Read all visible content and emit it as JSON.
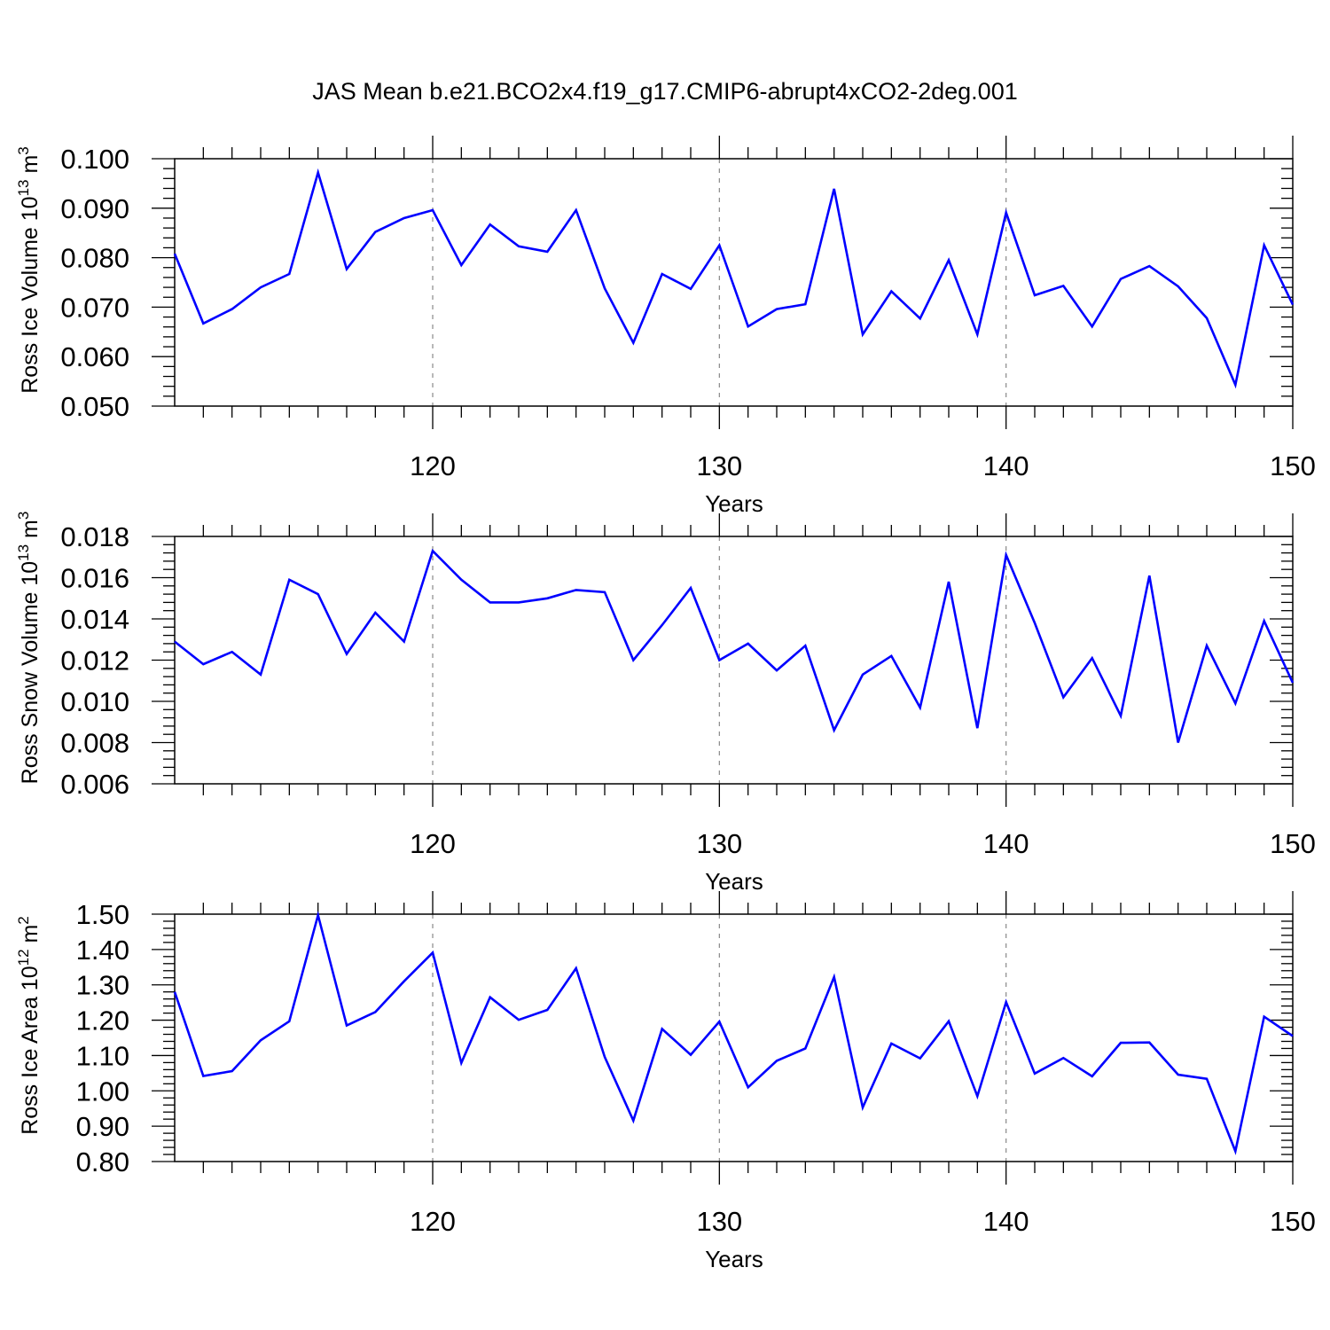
{
  "title": "JAS Mean b.e21.BCO2x4.f19_g17.CMIP6-abrupt4xCO2-2deg.001",
  "line_color": "#0000ff",
  "chart_data": [
    {
      "type": "line",
      "xlabel": "Years",
      "ylabel": {
        "main": "Ross Ice Volume 10",
        "exp": "13",
        "unit": " m",
        "unit_exp": "3"
      },
      "xlim": [
        111,
        150
      ],
      "ylim": [
        0.05,
        0.1
      ],
      "x_ticks": [
        120,
        130,
        140,
        150
      ],
      "y_ticks": [
        "0.050",
        "0.060",
        "0.070",
        "0.080",
        "0.090",
        "0.100"
      ],
      "x": [
        111,
        112,
        113,
        114,
        115,
        116,
        117,
        118,
        119,
        120,
        121,
        122,
        123,
        124,
        125,
        126,
        127,
        128,
        129,
        130,
        131,
        132,
        133,
        134,
        135,
        136,
        137,
        138,
        139,
        140,
        141,
        142,
        143,
        144,
        145,
        146,
        147,
        148,
        149,
        150
      ],
      "values": [
        0.0808,
        0.0667,
        0.0696,
        0.074,
        0.0767,
        0.0972,
        0.0777,
        0.0852,
        0.088,
        0.0896,
        0.0785,
        0.0867,
        0.0823,
        0.0812,
        0.0896,
        0.0738,
        0.0628,
        0.0767,
        0.0737,
        0.0825,
        0.0661,
        0.0696,
        0.0706,
        0.0939,
        0.0645,
        0.0732,
        0.0677,
        0.0795,
        0.0645,
        0.0891,
        0.0724,
        0.0743,
        0.0661,
        0.0757,
        0.0783,
        0.0742,
        0.0678,
        0.0543,
        0.0825,
        0.0705
      ]
    },
    {
      "type": "line",
      "xlabel": "Years",
      "ylabel": {
        "main": "Ross Snow Volume 10",
        "exp": "13",
        "unit": " m",
        "unit_exp": "3"
      },
      "xlim": [
        111,
        150
      ],
      "ylim": [
        0.006,
        0.018
      ],
      "x_ticks": [
        120,
        130,
        140,
        150
      ],
      "y_ticks": [
        "0.006",
        "0.008",
        "0.010",
        "0.012",
        "0.014",
        "0.016",
        "0.018"
      ],
      "x": [
        111,
        112,
        113,
        114,
        115,
        116,
        117,
        118,
        119,
        120,
        121,
        122,
        123,
        124,
        125,
        126,
        127,
        128,
        129,
        130,
        131,
        132,
        133,
        134,
        135,
        136,
        137,
        138,
        139,
        140,
        141,
        142,
        143,
        144,
        145,
        146,
        147,
        148,
        149,
        150
      ],
      "values": [
        0.0129,
        0.0118,
        0.0124,
        0.0113,
        0.0159,
        0.0152,
        0.0123,
        0.0143,
        0.0129,
        0.0173,
        0.0159,
        0.0148,
        0.0148,
        0.015,
        0.0154,
        0.0153,
        0.012,
        0.0137,
        0.0155,
        0.012,
        0.0128,
        0.0115,
        0.0127,
        0.0086,
        0.0113,
        0.0122,
        0.0097,
        0.0158,
        0.0087,
        0.0171,
        0.0138,
        0.0102,
        0.0121,
        0.0093,
        0.0161,
        0.008,
        0.0127,
        0.0099,
        0.0139,
        0.0109
      ]
    },
    {
      "type": "line",
      "xlabel": "Years",
      "ylabel": {
        "main": "Ross Ice Area 10",
        "exp": "12",
        "unit": " m",
        "unit_exp": "2"
      },
      "xlim": [
        111,
        150
      ],
      "ylim": [
        0.8,
        1.5
      ],
      "x_ticks": [
        120,
        130,
        140,
        150
      ],
      "y_ticks": [
        "0.80",
        "0.90",
        "1.00",
        "1.10",
        "1.20",
        "1.30",
        "1.40",
        "1.50"
      ],
      "x": [
        111,
        112,
        113,
        114,
        115,
        116,
        117,
        118,
        119,
        120,
        121,
        122,
        123,
        124,
        125,
        126,
        127,
        128,
        129,
        130,
        131,
        132,
        133,
        134,
        135,
        136,
        137,
        138,
        139,
        140,
        141,
        142,
        143,
        144,
        145,
        146,
        147,
        148,
        149,
        150
      ],
      "values": [
        1.28,
        1.042,
        1.056,
        1.143,
        1.197,
        1.497,
        1.185,
        1.223,
        1.31,
        1.391,
        1.079,
        1.265,
        1.201,
        1.229,
        1.347,
        1.096,
        0.916,
        1.175,
        1.102,
        1.196,
        1.01,
        1.085,
        1.12,
        1.322,
        0.953,
        1.134,
        1.092,
        1.197,
        0.985,
        1.251,
        1.049,
        1.093,
        1.041,
        1.136,
        1.137,
        1.046,
        1.034,
        0.829,
        1.21,
        1.155
      ]
    }
  ]
}
